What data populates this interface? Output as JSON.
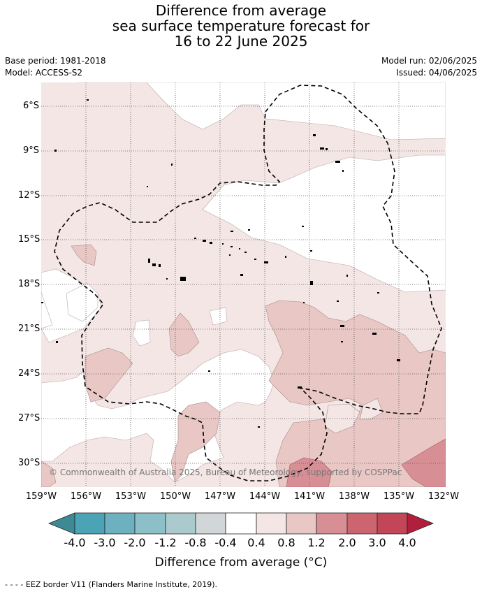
{
  "title": {
    "line1": "Difference from average",
    "line2": "sea surface temperature forecast for",
    "line3": "16 to 22 June 2025"
  },
  "meta": {
    "base_period": "Base period: 1981-2018",
    "model": "Model: ACCESS-S2",
    "model_run": "Model run: 02/06/2025",
    "issued": "Issued: 04/06/2025"
  },
  "map": {
    "lat_labels": [
      "6°S",
      "9°S",
      "12°S",
      "15°S",
      "18°S",
      "21°S",
      "24°S",
      "27°S",
      "30°S"
    ],
    "lon_labels": [
      "159°W",
      "156°W",
      "153°W",
      "150°W",
      "147°W",
      "144°W",
      "141°W",
      "138°W",
      "135°W",
      "132°W"
    ],
    "copyright": "© Commonwealth of Australia 2025, Bureau of Meteorology, supported by COSPPac"
  },
  "colorbar": {
    "labels": [
      "-4.0",
      "-3.0",
      "-2.0",
      "-1.2",
      "-0.8",
      "-0.4",
      "0.4",
      "0.8",
      "1.2",
      "2.0",
      "3.0",
      "4.0"
    ],
    "colors": {
      "under": "#3d8a95",
      "bins": [
        "#4aa4b6",
        "#6db1c0",
        "#8dbfc9",
        "#aacacd",
        "#d1d7d8",
        "#ffffff",
        "#f4e6e5",
        "#e8c7c4",
        "#d88e95",
        "#cd6570",
        "#c24558"
      ],
      "over": "#b11f3c"
    },
    "title": "Difference from average (°C)"
  },
  "footer": "- -  - - EEZ border V11 (Flanders Marine Institute, 2019)."
}
